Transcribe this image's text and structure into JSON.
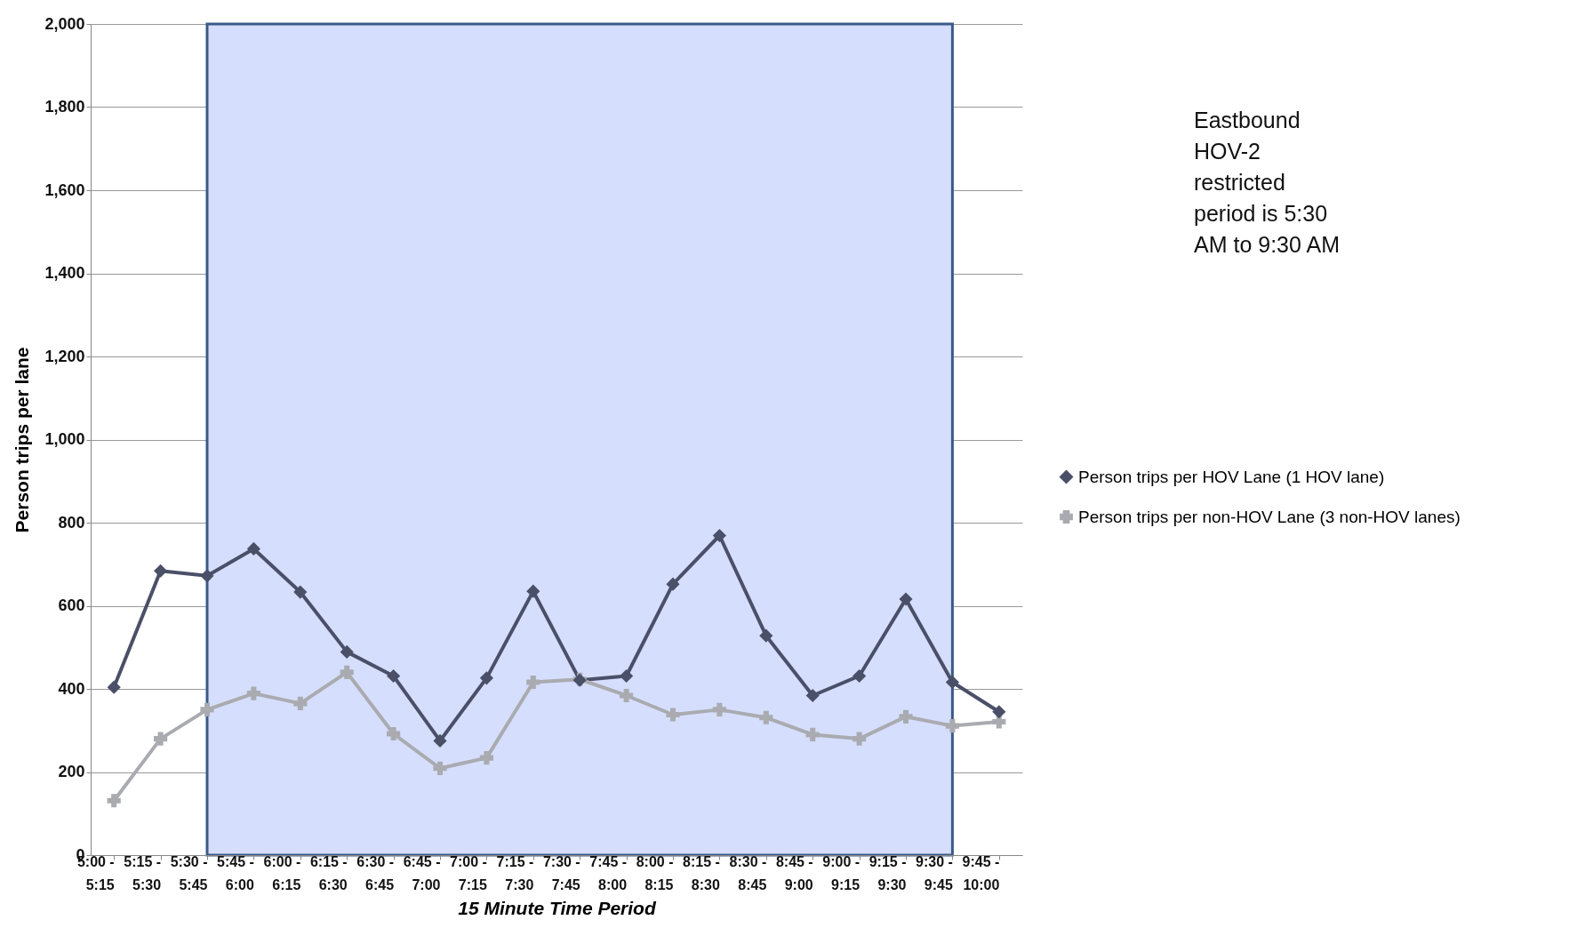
{
  "chart_data": {
    "type": "line",
    "xlabel": "15 Minute Time Period",
    "ylabel": "Person trips per lane",
    "categories": [
      "5:00 - 5:15",
      "5:15 - 5:30",
      "5:30 - 5:45",
      "5:45 - 6:00",
      "6:00 - 6:15",
      "6:15 - 6:30",
      "6:30 - 6:45",
      "6:45 - 7:00",
      "7:00 - 7:15",
      "7:15 - 7:30",
      "7:30 - 7:45",
      "7:45 - 8:00",
      "8:00 - 8:15",
      "8:15 - 8:30",
      "8:30 - 8:45",
      "8:45 - 9:00",
      "9:00 - 9:15",
      "9:15 - 9:30",
      "9:30 - 9:45",
      "9:45 - 10:00"
    ],
    "series": [
      {
        "name": "Person trips per HOV Lane (1 HOV lane)",
        "color": "#4a5068",
        "marker": "diamond",
        "values": [
          404,
          684,
          672,
          737,
          633,
          489,
          431,
          275,
          426,
          635,
          421,
          431,
          652,
          769,
          528,
          384,
          431,
          616,
          416,
          345
        ]
      },
      {
        "name": "Person trips per non-HOV Lane (3 non-HOV lanes)",
        "color": "#a9abb0",
        "marker": "cross",
        "values": [
          131,
          280,
          350,
          389,
          365,
          440,
          292,
          209,
          234,
          416,
          423,
          384,
          338,
          350,
          331,
          290,
          280,
          333,
          311,
          321
        ]
      }
    ],
    "ylim": [
      0,
      2000
    ],
    "yticks": [
      {
        "value": 0,
        "label": "0"
      },
      {
        "value": 200,
        "label": "200"
      },
      {
        "value": 400,
        "label": "400"
      },
      {
        "value": 600,
        "label": "600"
      },
      {
        "value": 800,
        "label": "800"
      },
      {
        "value": 1000,
        "label": "1,000"
      },
      {
        "value": 1200,
        "label": "1,200"
      },
      {
        "value": 1400,
        "label": "1,400"
      },
      {
        "value": 1600,
        "label": "1,600"
      },
      {
        "value": 1800,
        "label": "1,800"
      },
      {
        "value": 2000,
        "label": "2,000"
      }
    ],
    "grid": "y",
    "legend": "right",
    "line_style": "solid",
    "bands": [
      {
        "axis": "x",
        "from": "5:30 - 5:45",
        "to": "9:30 - 9:45",
        "color": "#d6defd"
      }
    ],
    "annotations": [
      "Eastbound HOV-2 restricted period is 5:30 AM to 9:30 AM"
    ]
  }
}
